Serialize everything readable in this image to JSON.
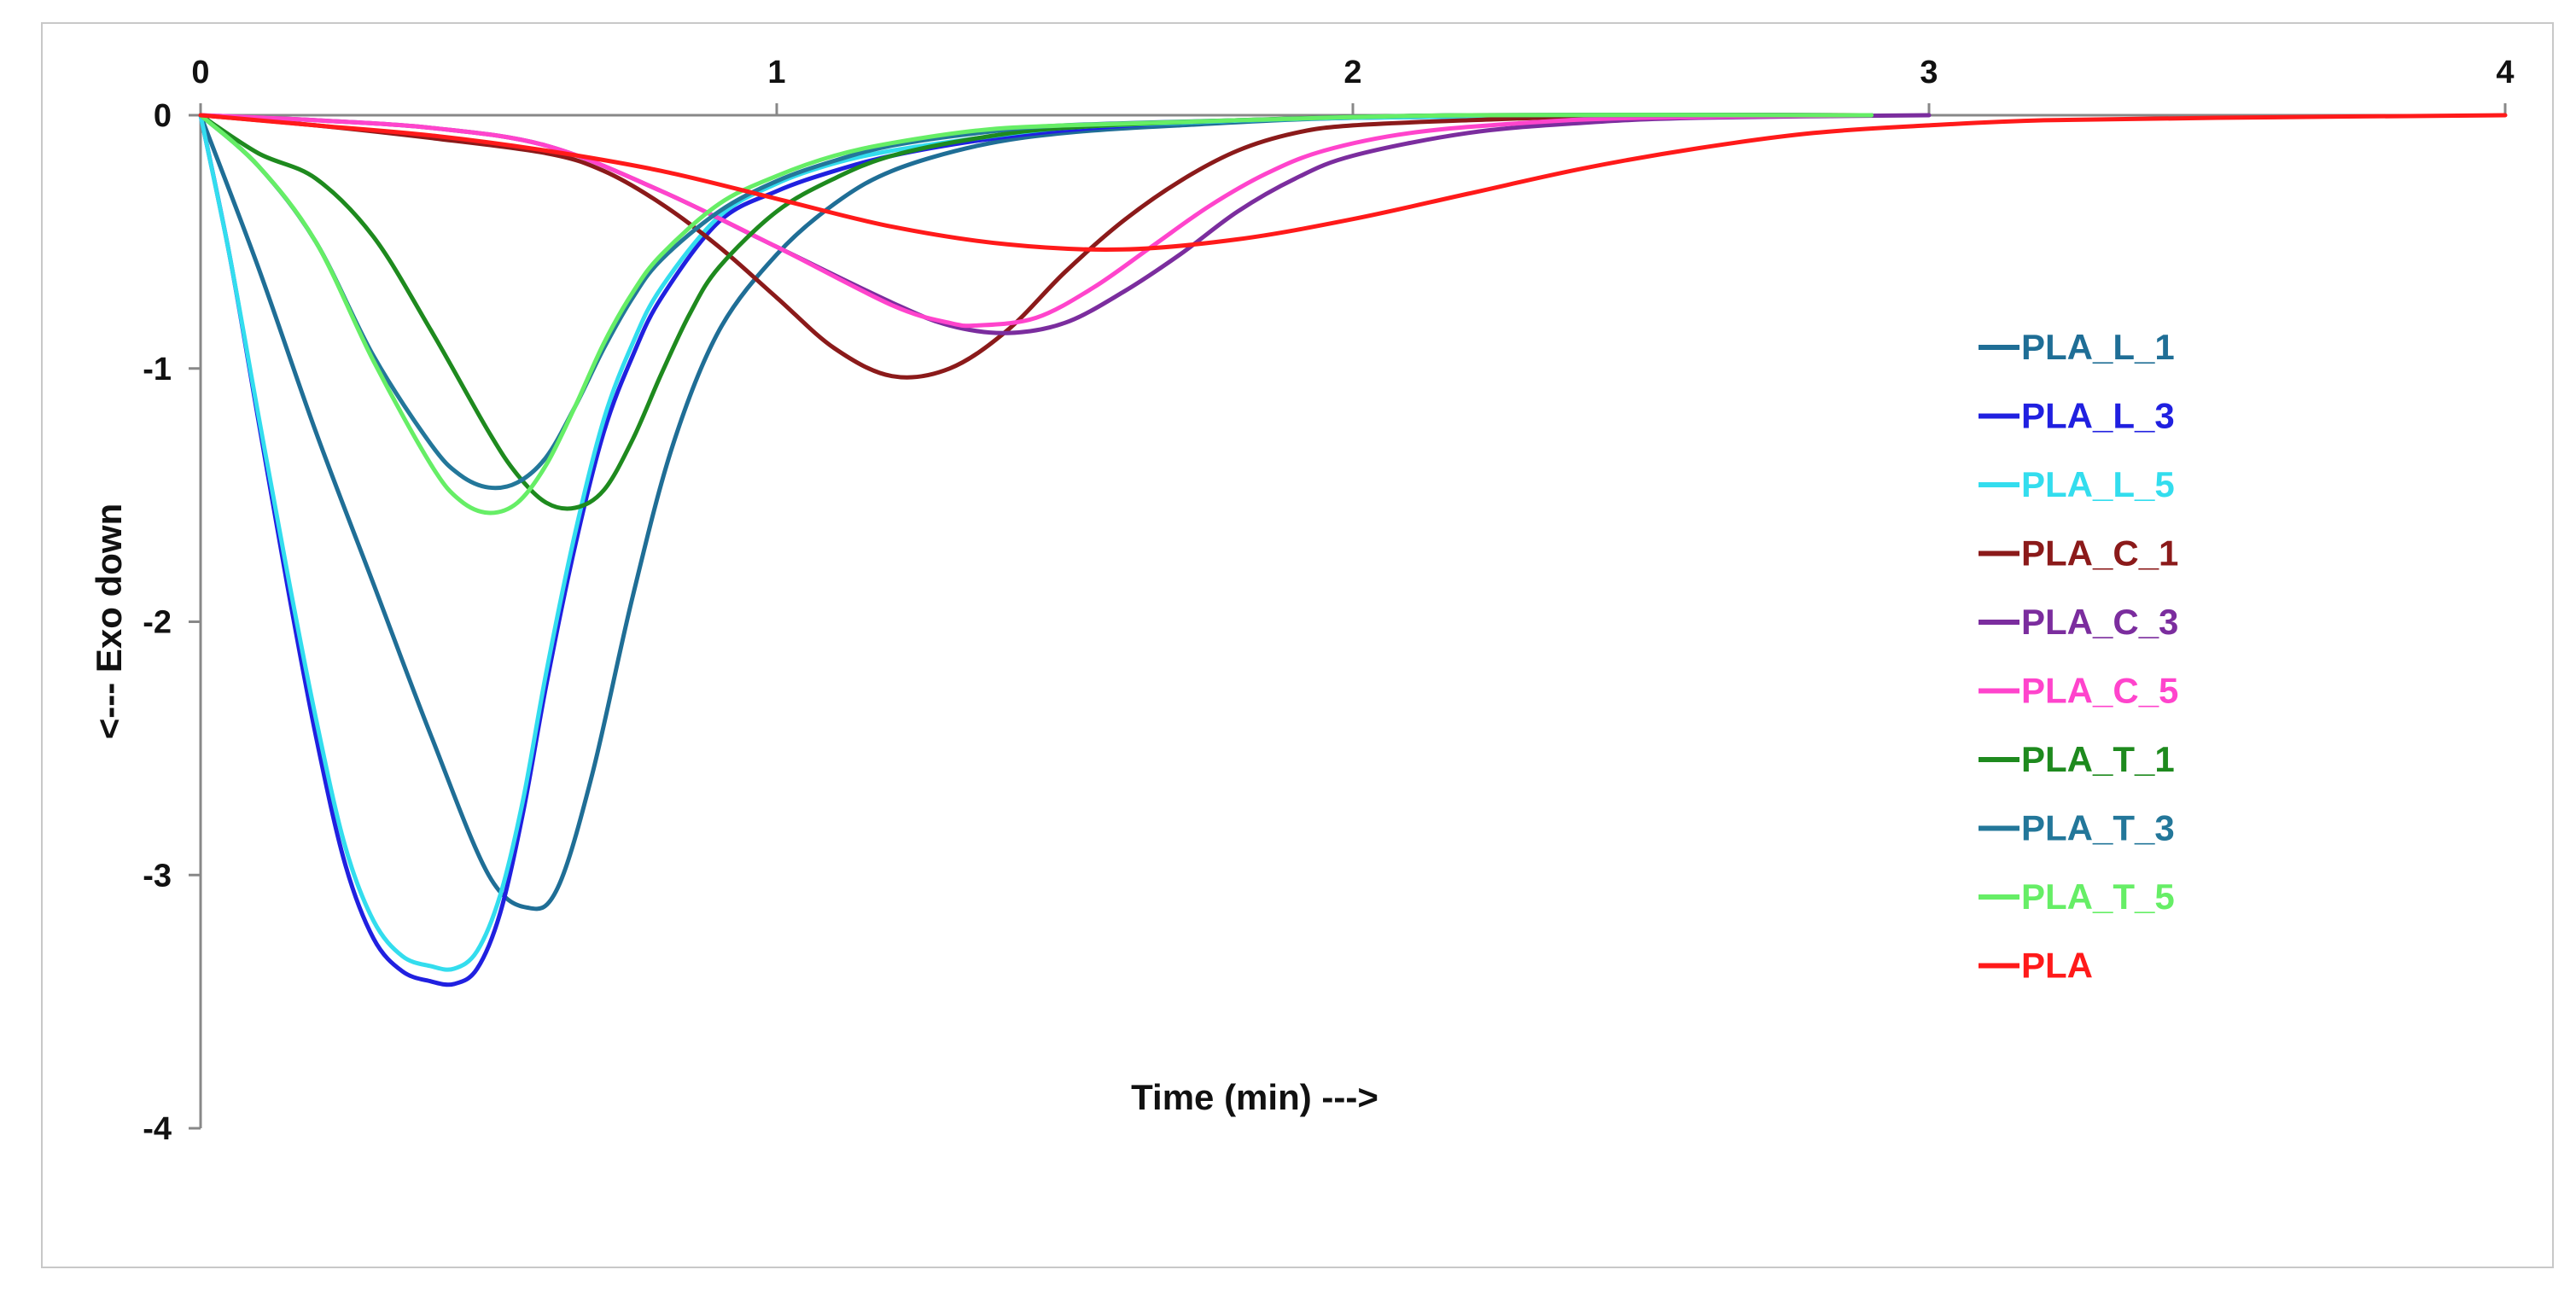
{
  "chart_data": {
    "type": "line",
    "title": "",
    "xlabel": "Time (min) --->",
    "ylabel": "<--- Exo down",
    "xlim": [
      0,
      4
    ],
    "ylim": [
      -4,
      0
    ],
    "x_ticks": [
      "0",
      "1",
      "2",
      "3",
      "4"
    ],
    "y_ticks": [
      "0",
      "-1",
      "-2",
      "-3",
      "-4"
    ],
    "x_axis_position": "top",
    "grid": false,
    "legend_position": "right",
    "series": [
      {
        "name": "PLA_L_1",
        "color": "#1F6E96",
        "points": [
          [
            0,
            0
          ],
          [
            0.1,
            -0.6
          ],
          [
            0.2,
            -1.25
          ],
          [
            0.3,
            -1.85
          ],
          [
            0.4,
            -2.45
          ],
          [
            0.5,
            -3.0
          ],
          [
            0.57,
            -3.13
          ],
          [
            0.62,
            -3.05
          ],
          [
            0.68,
            -2.6
          ],
          [
            0.75,
            -1.9
          ],
          [
            0.82,
            -1.3
          ],
          [
            0.9,
            -0.85
          ],
          [
            1.0,
            -0.55
          ],
          [
            1.1,
            -0.35
          ],
          [
            1.2,
            -0.22
          ],
          [
            1.35,
            -0.12
          ],
          [
            1.5,
            -0.07
          ],
          [
            1.7,
            -0.04
          ],
          [
            2.0,
            -0.01
          ],
          [
            2.5,
            0
          ],
          [
            2.9,
            0
          ]
        ]
      },
      {
        "name": "PLA_L_3",
        "color": "#2020E0",
        "points": [
          [
            0,
            0
          ],
          [
            0.05,
            -0.55
          ],
          [
            0.1,
            -1.2
          ],
          [
            0.15,
            -1.85
          ],
          [
            0.2,
            -2.45
          ],
          [
            0.25,
            -2.95
          ],
          [
            0.3,
            -3.25
          ],
          [
            0.35,
            -3.38
          ],
          [
            0.4,
            -3.42
          ],
          [
            0.44,
            -3.43
          ],
          [
            0.48,
            -3.37
          ],
          [
            0.52,
            -3.15
          ],
          [
            0.56,
            -2.75
          ],
          [
            0.6,
            -2.25
          ],
          [
            0.65,
            -1.7
          ],
          [
            0.7,
            -1.25
          ],
          [
            0.75,
            -0.95
          ],
          [
            0.8,
            -0.72
          ],
          [
            0.9,
            -0.42
          ],
          [
            1.0,
            -0.3
          ],
          [
            1.1,
            -0.22
          ],
          [
            1.2,
            -0.16
          ],
          [
            1.35,
            -0.1
          ],
          [
            1.5,
            -0.06
          ],
          [
            1.7,
            -0.03
          ],
          [
            2.0,
            -0.01
          ],
          [
            2.5,
            0
          ],
          [
            2.9,
            0
          ]
        ]
      },
      {
        "name": "PLA_L_5",
        "color": "#33DDEE",
        "points": [
          [
            0,
            0
          ],
          [
            0.05,
            -0.55
          ],
          [
            0.1,
            -1.18
          ],
          [
            0.15,
            -1.8
          ],
          [
            0.2,
            -2.38
          ],
          [
            0.25,
            -2.88
          ],
          [
            0.3,
            -3.18
          ],
          [
            0.35,
            -3.32
          ],
          [
            0.4,
            -3.36
          ],
          [
            0.44,
            -3.37
          ],
          [
            0.48,
            -3.3
          ],
          [
            0.52,
            -3.08
          ],
          [
            0.56,
            -2.7
          ],
          [
            0.6,
            -2.2
          ],
          [
            0.65,
            -1.65
          ],
          [
            0.7,
            -1.2
          ],
          [
            0.75,
            -0.9
          ],
          [
            0.8,
            -0.68
          ],
          [
            0.9,
            -0.4
          ],
          [
            1.0,
            -0.27
          ],
          [
            1.1,
            -0.19
          ],
          [
            1.2,
            -0.14
          ],
          [
            1.35,
            -0.09
          ],
          [
            1.5,
            -0.05
          ],
          [
            1.7,
            -0.03
          ],
          [
            2.0,
            -0.01
          ],
          [
            2.5,
            0
          ],
          [
            2.9,
            0
          ]
        ]
      },
      {
        "name": "PLA_C_1",
        "color": "#8B1A1A",
        "points": [
          [
            0,
            0
          ],
          [
            0.2,
            -0.04
          ],
          [
            0.4,
            -0.09
          ],
          [
            0.6,
            -0.15
          ],
          [
            0.7,
            -0.22
          ],
          [
            0.8,
            -0.35
          ],
          [
            0.9,
            -0.52
          ],
          [
            1.0,
            -0.72
          ],
          [
            1.1,
            -0.92
          ],
          [
            1.2,
            -1.03
          ],
          [
            1.3,
            -1.0
          ],
          [
            1.4,
            -0.85
          ],
          [
            1.5,
            -0.62
          ],
          [
            1.6,
            -0.42
          ],
          [
            1.7,
            -0.26
          ],
          [
            1.8,
            -0.14
          ],
          [
            1.9,
            -0.07
          ],
          [
            2.0,
            -0.04
          ],
          [
            2.2,
            -0.02
          ],
          [
            2.5,
            0
          ],
          [
            2.9,
            0
          ]
        ]
      },
      {
        "name": "PLA_C_3",
        "color": "#7B2D9E",
        "points": [
          [
            0,
            0
          ],
          [
            0.2,
            -0.02
          ],
          [
            0.4,
            -0.05
          ],
          [
            0.6,
            -0.12
          ],
          [
            0.8,
            -0.3
          ],
          [
            1.0,
            -0.52
          ],
          [
            1.2,
            -0.74
          ],
          [
            1.3,
            -0.83
          ],
          [
            1.4,
            -0.86
          ],
          [
            1.5,
            -0.82
          ],
          [
            1.6,
            -0.7
          ],
          [
            1.7,
            -0.55
          ],
          [
            1.8,
            -0.38
          ],
          [
            1.9,
            -0.25
          ],
          [
            2.0,
            -0.16
          ],
          [
            2.2,
            -0.07
          ],
          [
            2.4,
            -0.03
          ],
          [
            2.6,
            -0.01
          ],
          [
            3.0,
            0
          ]
        ]
      },
      {
        "name": "PLA_C_5",
        "color": "#FF44CC",
        "points": [
          [
            0,
            0
          ],
          [
            0.2,
            -0.02
          ],
          [
            0.4,
            -0.05
          ],
          [
            0.6,
            -0.12
          ],
          [
            0.8,
            -0.3
          ],
          [
            1.0,
            -0.52
          ],
          [
            1.2,
            -0.75
          ],
          [
            1.3,
            -0.82
          ],
          [
            1.35,
            -0.83
          ],
          [
            1.45,
            -0.8
          ],
          [
            1.55,
            -0.68
          ],
          [
            1.65,
            -0.52
          ],
          [
            1.75,
            -0.36
          ],
          [
            1.85,
            -0.23
          ],
          [
            1.95,
            -0.14
          ],
          [
            2.1,
            -0.07
          ],
          [
            2.3,
            -0.03
          ],
          [
            2.5,
            -0.01
          ],
          [
            2.9,
            0
          ]
        ]
      },
      {
        "name": "PLA_T_1",
        "color": "#1E8A1E",
        "points": [
          [
            0,
            0
          ],
          [
            0.1,
            -0.15
          ],
          [
            0.2,
            -0.25
          ],
          [
            0.3,
            -0.48
          ],
          [
            0.4,
            -0.85
          ],
          [
            0.5,
            -1.25
          ],
          [
            0.55,
            -1.42
          ],
          [
            0.6,
            -1.53
          ],
          [
            0.65,
            -1.55
          ],
          [
            0.7,
            -1.48
          ],
          [
            0.75,
            -1.28
          ],
          [
            0.8,
            -1.02
          ],
          [
            0.85,
            -0.78
          ],
          [
            0.9,
            -0.6
          ],
          [
            1.0,
            -0.38
          ],
          [
            1.1,
            -0.25
          ],
          [
            1.2,
            -0.16
          ],
          [
            1.35,
            -0.09
          ],
          [
            1.5,
            -0.05
          ],
          [
            1.8,
            -0.02
          ],
          [
            2.2,
            0
          ],
          [
            2.9,
            0
          ]
        ]
      },
      {
        "name": "PLA_T_3",
        "color": "#23779A",
        "points": [
          [
            0,
            0
          ],
          [
            0.1,
            -0.2
          ],
          [
            0.2,
            -0.5
          ],
          [
            0.3,
            -0.95
          ],
          [
            0.4,
            -1.3
          ],
          [
            0.45,
            -1.42
          ],
          [
            0.5,
            -1.47
          ],
          [
            0.55,
            -1.45
          ],
          [
            0.6,
            -1.35
          ],
          [
            0.65,
            -1.15
          ],
          [
            0.7,
            -0.92
          ],
          [
            0.75,
            -0.72
          ],
          [
            0.8,
            -0.57
          ],
          [
            0.9,
            -0.38
          ],
          [
            1.0,
            -0.26
          ],
          [
            1.1,
            -0.18
          ],
          [
            1.2,
            -0.12
          ],
          [
            1.35,
            -0.07
          ],
          [
            1.5,
            -0.04
          ],
          [
            1.8,
            -0.02
          ],
          [
            2.2,
            0
          ],
          [
            2.9,
            0
          ]
        ]
      },
      {
        "name": "PLA_T_5",
        "color": "#66EE66",
        "points": [
          [
            0,
            0
          ],
          [
            0.1,
            -0.2
          ],
          [
            0.2,
            -0.5
          ],
          [
            0.3,
            -0.97
          ],
          [
            0.4,
            -1.38
          ],
          [
            0.45,
            -1.52
          ],
          [
            0.5,
            -1.57
          ],
          [
            0.55,
            -1.53
          ],
          [
            0.6,
            -1.38
          ],
          [
            0.65,
            -1.15
          ],
          [
            0.7,
            -0.9
          ],
          [
            0.75,
            -0.7
          ],
          [
            0.8,
            -0.55
          ],
          [
            0.9,
            -0.35
          ],
          [
            1.0,
            -0.24
          ],
          [
            1.1,
            -0.16
          ],
          [
            1.2,
            -0.11
          ],
          [
            1.35,
            -0.06
          ],
          [
            1.5,
            -0.04
          ],
          [
            1.8,
            -0.02
          ],
          [
            2.2,
            0
          ],
          [
            2.9,
            0
          ]
        ]
      },
      {
        "name": "PLA",
        "color": "#FF1A1A",
        "points": [
          [
            0,
            0
          ],
          [
            0.2,
            -0.04
          ],
          [
            0.4,
            -0.08
          ],
          [
            0.6,
            -0.14
          ],
          [
            0.8,
            -0.22
          ],
          [
            1.0,
            -0.33
          ],
          [
            1.2,
            -0.44
          ],
          [
            1.4,
            -0.51
          ],
          [
            1.6,
            -0.53
          ],
          [
            1.8,
            -0.49
          ],
          [
            2.0,
            -0.41
          ],
          [
            2.2,
            -0.31
          ],
          [
            2.4,
            -0.21
          ],
          [
            2.6,
            -0.13
          ],
          [
            2.8,
            -0.07
          ],
          [
            3.0,
            -0.04
          ],
          [
            3.2,
            -0.02
          ],
          [
            3.5,
            -0.01
          ],
          [
            4.0,
            0
          ]
        ]
      }
    ]
  }
}
